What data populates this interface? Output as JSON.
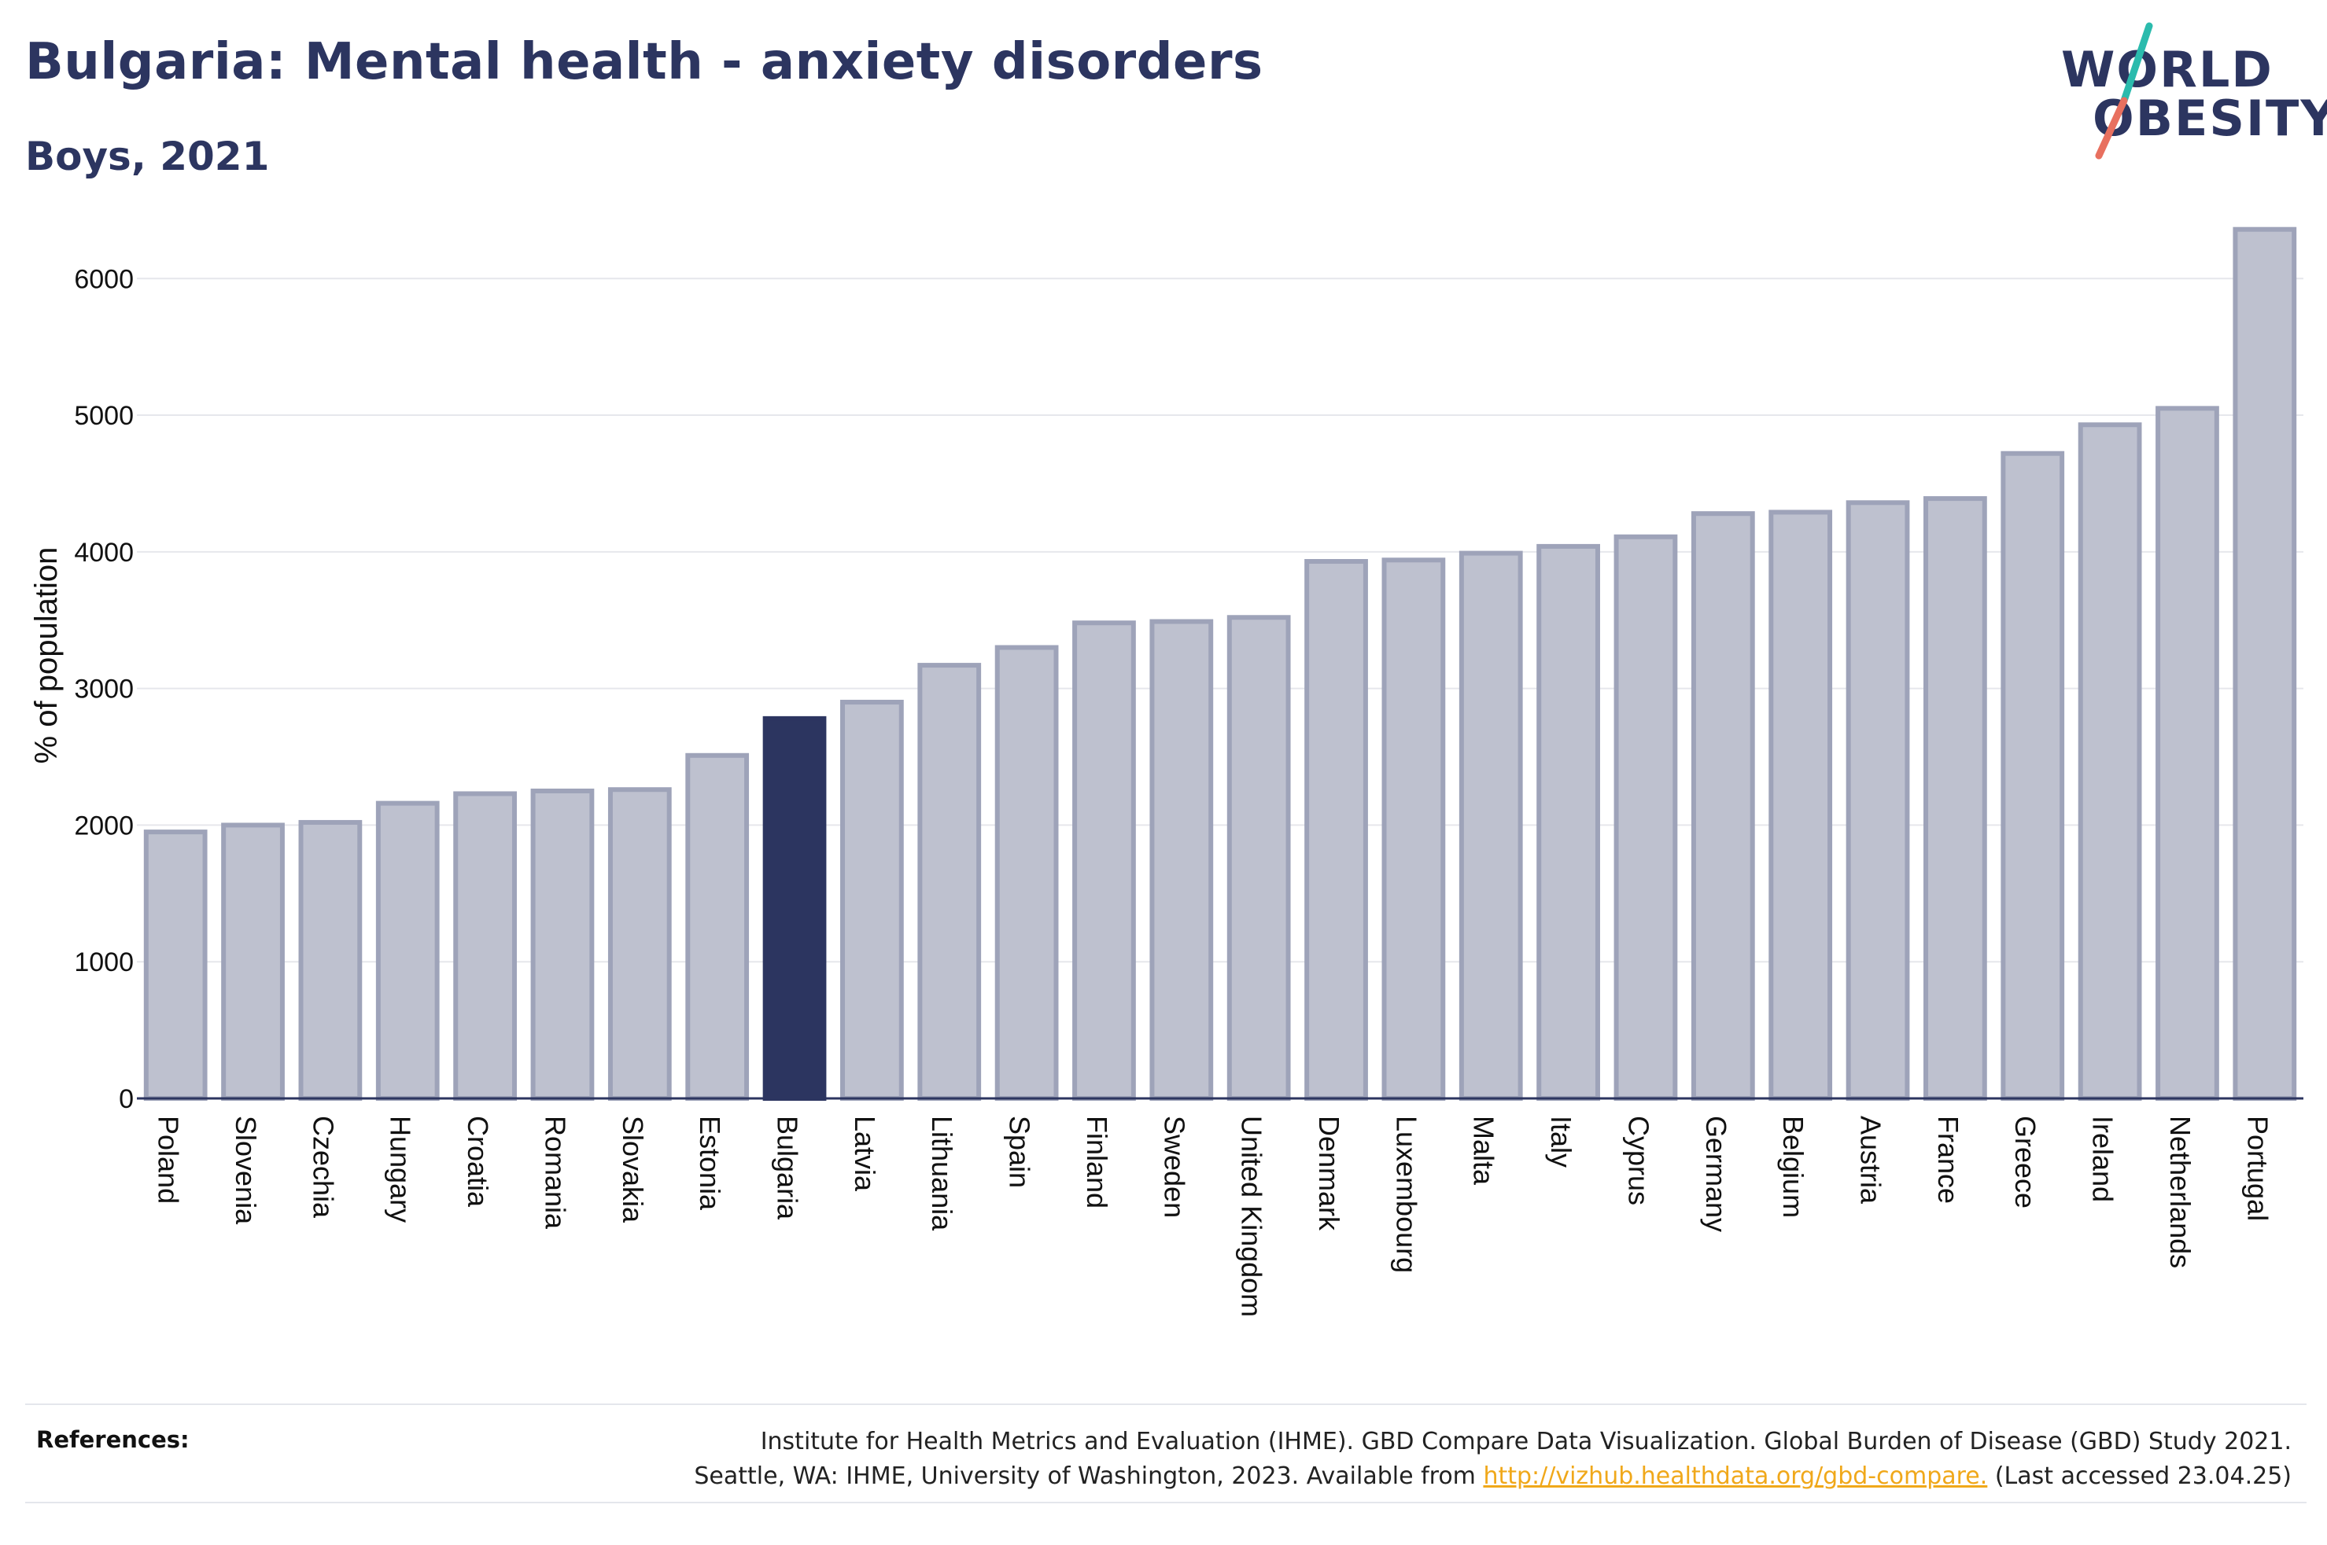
{
  "header": {
    "title": "Bulgaria: Mental health - anxiety disorders",
    "subtitle": "Boys, 2021"
  },
  "logo": {
    "line1": "WORLD",
    "line2": "OBESITY",
    "slash_colors": [
      "#2bbbad",
      "#e8705f"
    ]
  },
  "colors": {
    "bar_default": "#bec1cf",
    "bar_default_stroke": "#9ea3b9",
    "bar_highlight": "#2c3560",
    "text_dark": "#2c3560",
    "link": "#f0a81a"
  },
  "chart_data": {
    "type": "bar",
    "title": "Bulgaria: Mental health - anxiety disorders",
    "subtitle": "Boys, 2021",
    "xlabel": "",
    "ylabel": "% of population",
    "ylim": [
      0,
      6600
    ],
    "yticks": [
      0,
      1000,
      2000,
      3000,
      4000,
      5000,
      6000
    ],
    "grid": true,
    "legend": "none",
    "highlight": "Bulgaria",
    "categories": [
      "Poland",
      "Slovenia",
      "Czechia",
      "Hungary",
      "Croatia",
      "Romania",
      "Slovakia",
      "Estonia",
      "Bulgaria",
      "Latvia",
      "Lithuania",
      "Spain",
      "Finland",
      "Sweden",
      "United Kingdom",
      "Denmark",
      "Luxembourg",
      "Malta",
      "Italy",
      "Cyprus",
      "Germany",
      "Belgium",
      "Austria",
      "France",
      "Greece",
      "Ireland",
      "Netherlands",
      "Portugal"
    ],
    "values": [
      1950,
      2000,
      2020,
      2160,
      2230,
      2250,
      2260,
      2510,
      2780,
      2900,
      3170,
      3300,
      3480,
      3490,
      3520,
      3930,
      3940,
      3990,
      4040,
      4110,
      4280,
      4290,
      4360,
      4390,
      4720,
      4930,
      5050,
      6360
    ]
  },
  "references": {
    "label": "References:",
    "line1": "Institute for Health Metrics and Evaluation (IHME). GBD Compare Data Visualization. Global Burden of Disease (GBD) Study 2021.",
    "line2_prefix": "Seattle, WA: IHME, University of Washington, 2023. Available from ",
    "link_text": "http://vizhub.healthdata.org/gbd-compare.",
    "line2_suffix": " (Last accessed 23.04.25)"
  }
}
